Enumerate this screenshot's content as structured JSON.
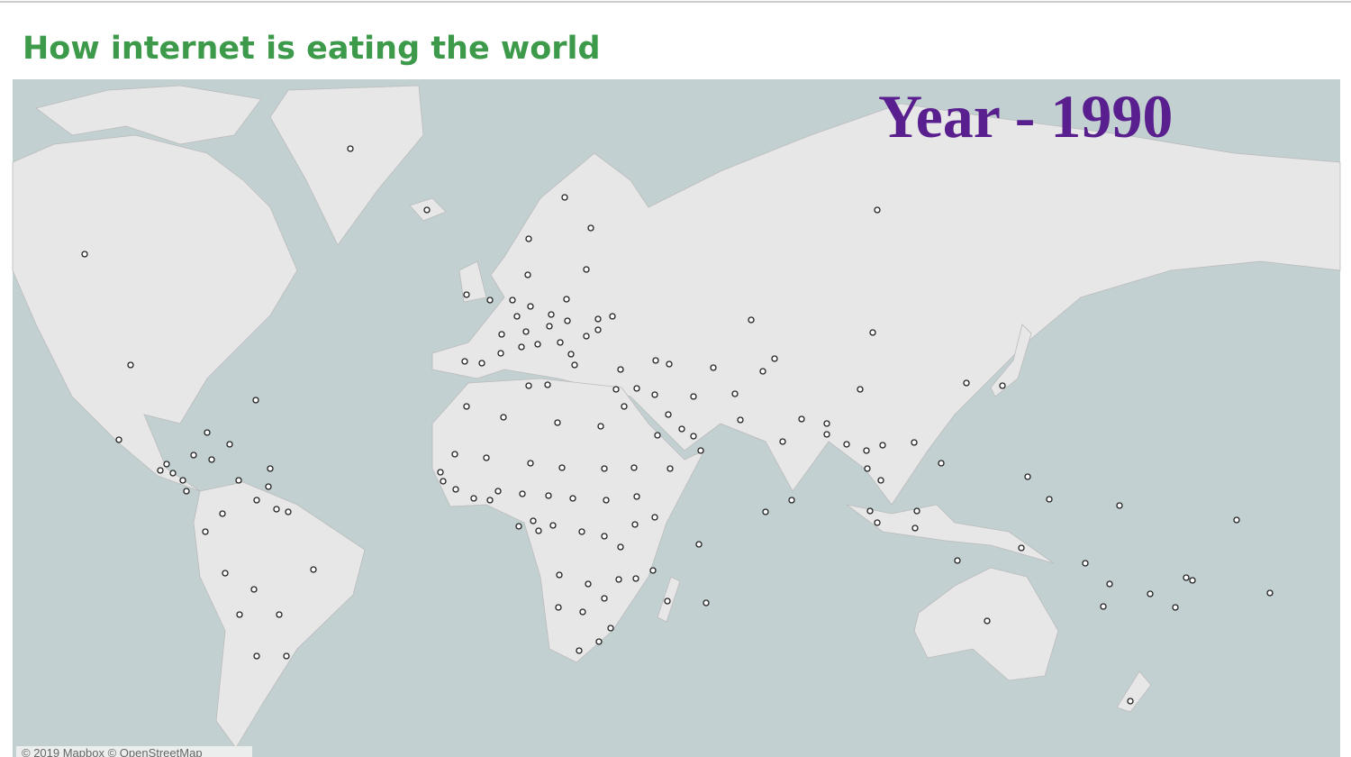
{
  "header": {
    "title": "How internet is eating the world"
  },
  "map": {
    "year_label": "Year - 1990",
    "attribution": "© 2019 Mapbox © OpenStreetMap"
  }
}
